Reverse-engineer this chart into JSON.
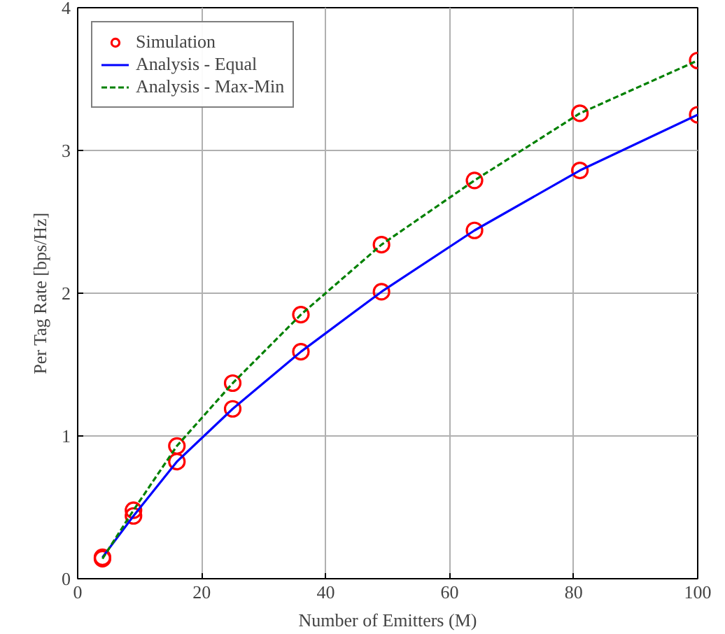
{
  "chart_data": {
    "type": "line",
    "xlabel": "Number of Emitters (M)",
    "ylabel": "Per Tag Rate [bps/Hz]",
    "xlim": [
      0,
      100
    ],
    "ylim": [
      0,
      4
    ],
    "xticks": [
      0,
      20,
      40,
      60,
      80,
      100
    ],
    "yticks": [
      0,
      1,
      2,
      3,
      4
    ],
    "grid": true,
    "legend": "top left",
    "series": [
      {
        "name": "Simulation",
        "type": "scatter",
        "marker": "circle",
        "color": "#ff0000",
        "x": [
          4,
          9,
          16,
          25,
          36,
          49,
          64,
          81,
          100,
          4,
          9,
          16,
          25,
          36,
          49,
          64,
          81,
          100
        ],
        "values": [
          0.15,
          0.44,
          0.82,
          1.19,
          1.59,
          2.01,
          2.44,
          2.86,
          3.25,
          0.14,
          0.48,
          0.93,
          1.37,
          1.85,
          2.34,
          2.79,
          3.26,
          3.63
        ]
      },
      {
        "name": "Analysis - Equal",
        "line_style": "solid",
        "color": "#0000ff",
        "x": [
          4,
          9,
          16,
          25,
          36,
          49,
          64,
          81,
          100
        ],
        "values": [
          0.15,
          0.44,
          0.82,
          1.19,
          1.59,
          2.01,
          2.44,
          2.86,
          3.25
        ]
      },
      {
        "name": "Analysis - Max-Min",
        "line_style": "dashed",
        "color": "#008000",
        "x": [
          4,
          9,
          16,
          25,
          36,
          49,
          64,
          81,
          100
        ],
        "values": [
          0.14,
          0.48,
          0.93,
          1.37,
          1.85,
          2.34,
          2.79,
          3.26,
          3.63
        ]
      }
    ]
  }
}
